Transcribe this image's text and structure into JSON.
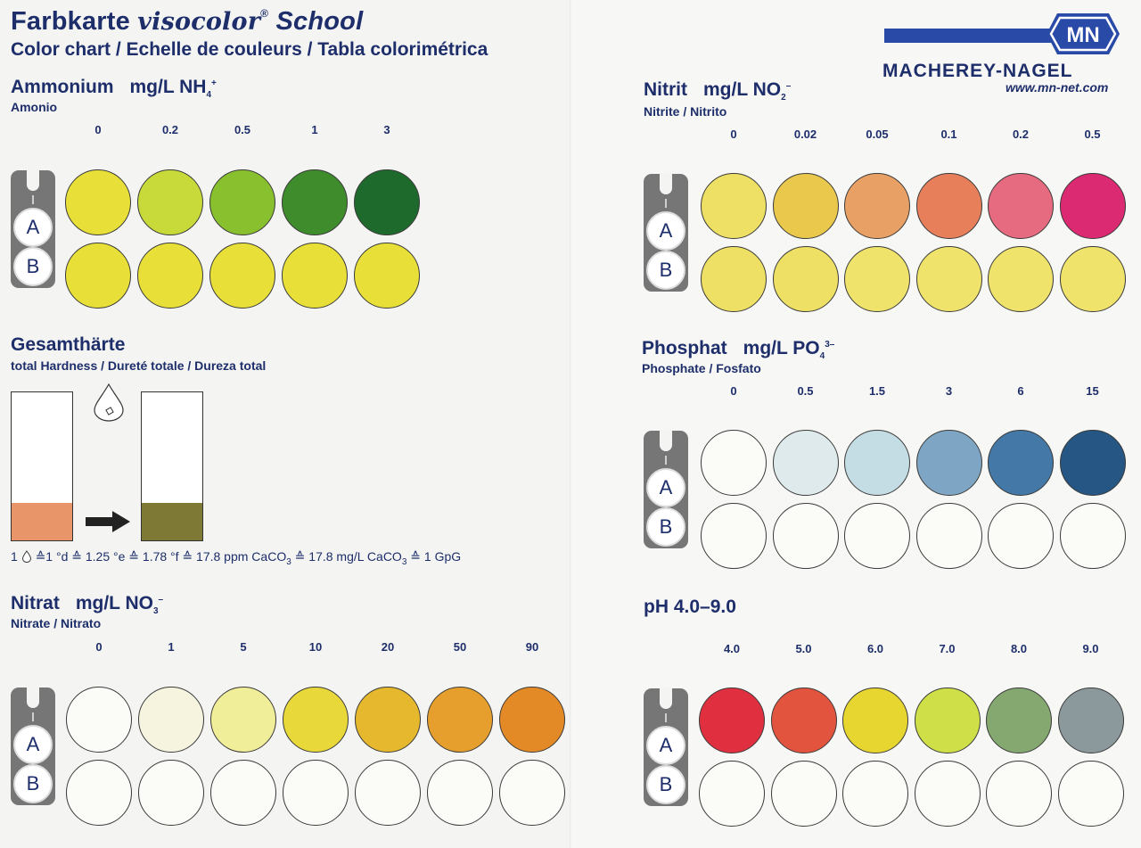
{
  "header": {
    "title_prefix": "Farbkarte",
    "brand": "visocolor",
    "brand_mark": "®",
    "brand_suffix": "School",
    "subtitle": "Color chart / Echelle de couleurs / Tabla colorimétrica"
  },
  "logo": {
    "mark": "MN",
    "company": "MACHEREY-NAGEL",
    "website": "www.mn-net.com",
    "colors": {
      "bar": "#2a4aa8",
      "badge": "#2a4aa8"
    }
  },
  "holder_labels": {
    "a": "A",
    "b": "B"
  },
  "ammonium": {
    "title": "Ammonium",
    "unit": "mg/L NH",
    "unit_sub": "4",
    "unit_sup": "+",
    "subtitle": "Amonio",
    "scale": [
      "0",
      "0.2",
      "0.5",
      "1",
      "3"
    ],
    "row_a_colors": [
      "#e8e038",
      "#c8da3a",
      "#88c02e",
      "#3e8c2c",
      "#1e6a2c"
    ],
    "row_b_colors": [
      "#e8e038",
      "#e8e038",
      "#e8e038",
      "#e8e038",
      "#e8e038"
    ]
  },
  "hardness": {
    "title": "Gesamthärte",
    "subtitle": "total Hardness / Dureté totale / Dureza total",
    "before_color": "#e8956a",
    "after_color": "#7e7a36",
    "formula": {
      "part1": "1",
      "part2": "≙1 °d ≙ 1.25 °e ≙ 1.78 °f ≙ 17.8 ppm CaCO",
      "part3": "≙ 17.8 mg/L CaCO",
      "part4": "≙ 1 GpG",
      "sub": "3"
    }
  },
  "nitrate": {
    "title": "Nitrat",
    "unit": "mg/L NO",
    "unit_sub": "3",
    "unit_sup": "–",
    "subtitle": "Nitrate / Nitrato",
    "scale": [
      "0",
      "1",
      "5",
      "10",
      "20",
      "50",
      "90"
    ],
    "row_a_colors": [
      "#fbfbf8",
      "#f6f4de",
      "#f1ee9a",
      "#e8d83a",
      "#e6b82e",
      "#e69f2c",
      "#e38a26"
    ],
    "row_b_colors": [
      "#fbfbf8",
      "#fbfbf8",
      "#fbfbf8",
      "#fbfbf8",
      "#fbfbf8",
      "#fbfbf8",
      "#fbfbf8"
    ]
  },
  "nitrite": {
    "title": "Nitrit",
    "unit": "mg/L NO",
    "unit_sub": "2",
    "unit_sup": "–",
    "subtitle": "Nitrite / Nitrito",
    "scale": [
      "0",
      "0.02",
      "0.05",
      "0.1",
      "0.2",
      "0.5"
    ],
    "row_a_colors": [
      "#eee064",
      "#e9c84c",
      "#e9a064",
      "#e67f5a",
      "#e66a80",
      "#dc2a72"
    ],
    "row_b_colors": [
      "#eee064",
      "#eee064",
      "#efe36c",
      "#efe36c",
      "#efe36c",
      "#efe36c"
    ]
  },
  "phosphate": {
    "title": "Phosphat",
    "unit": "mg/L PO",
    "unit_sub": "4",
    "unit_sup": "3–",
    "subtitle": "Phosphate / Fosfato",
    "scale": [
      "0",
      "0.5",
      "1.5",
      "3",
      "6",
      "15"
    ],
    "row_a_colors": [
      "#fbfbf8",
      "#dfeaec",
      "#c4dce4",
      "#7ea6c4",
      "#4478a6",
      "#255684"
    ],
    "row_b_colors": [
      "#fbfbf8",
      "#fbfbf8",
      "#fbfbf8",
      "#fbfbf8",
      "#fbfbf8",
      "#fbfbf8"
    ]
  },
  "ph": {
    "title": "pH 4.0–9.0",
    "scale": [
      "4.0",
      "5.0",
      "6.0",
      "7.0",
      "8.0",
      "9.0"
    ],
    "row_a_colors": [
      "#e03040",
      "#e2543e",
      "#e8d630",
      "#cfdf48",
      "#84a870",
      "#8c999c"
    ],
    "row_b_colors": [
      "#fbfbf8",
      "#fbfbf8",
      "#fbfbf8",
      "#fbfbf8",
      "#fbfbf8",
      "#fbfbf8"
    ]
  }
}
